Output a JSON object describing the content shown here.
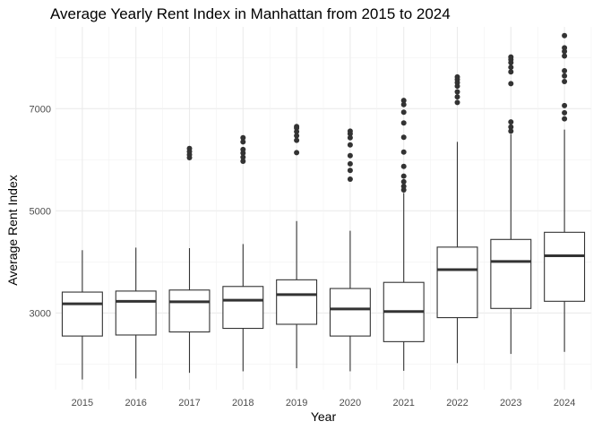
{
  "chart_data": {
    "type": "box",
    "title": "Average Yearly Rent Index in Manhattan from 2015 to 2024",
    "xlabel": "Year",
    "ylabel": "Average Rent Index",
    "ylim": [
      1500,
      8600
    ],
    "yticks": [
      3000,
      5000,
      7000
    ],
    "grid": true,
    "categories": [
      "2015",
      "2016",
      "2017",
      "2018",
      "2019",
      "2020",
      "2021",
      "2022",
      "2023",
      "2024"
    ],
    "boxes": [
      {
        "category": "2015",
        "min": 1700,
        "q1": 2550,
        "median": 3180,
        "q3": 3410,
        "max": 4230,
        "outliers": []
      },
      {
        "category": "2016",
        "min": 1720,
        "q1": 2570,
        "median": 3230,
        "q3": 3430,
        "max": 4280,
        "outliers": []
      },
      {
        "category": "2017",
        "min": 1830,
        "q1": 2630,
        "median": 3220,
        "q3": 3450,
        "max": 4270,
        "outliers": [
          6040,
          6100,
          6160,
          6220
        ]
      },
      {
        "category": "2018",
        "min": 1860,
        "q1": 2700,
        "median": 3250,
        "q3": 3520,
        "max": 4350,
        "outliers": [
          5970,
          6050,
          6130,
          6200,
          6350,
          6430
        ]
      },
      {
        "category": "2019",
        "min": 1920,
        "q1": 2780,
        "median": 3360,
        "q3": 3650,
        "max": 4800,
        "outliers": [
          6140,
          6380,
          6470,
          6550,
          6620,
          6650
        ]
      },
      {
        "category": "2020",
        "min": 1860,
        "q1": 2550,
        "median": 3080,
        "q3": 3480,
        "max": 4610,
        "outliers": [
          5620,
          5790,
          5920,
          6080,
          6290,
          6430,
          6510,
          6560
        ]
      },
      {
        "category": "2021",
        "min": 1870,
        "q1": 2440,
        "median": 3030,
        "q3": 3600,
        "max": 5350,
        "outliers": [
          5410,
          5480,
          5570,
          5680,
          5870,
          6150,
          6440,
          6720,
          6930,
          7080,
          7160
        ]
      },
      {
        "category": "2022",
        "min": 2020,
        "q1": 2910,
        "median": 3850,
        "q3": 4290,
        "max": 6350,
        "outliers": [
          7120,
          7230,
          7330,
          7440,
          7510,
          7570,
          7620
        ]
      },
      {
        "category": "2023",
        "min": 2200,
        "q1": 3090,
        "median": 4010,
        "q3": 4440,
        "max": 6500,
        "outliers": [
          6560,
          6640,
          6740,
          7490,
          7720,
          7810,
          7900,
          7960,
          8010
        ]
      },
      {
        "category": "2024",
        "min": 2240,
        "q1": 3230,
        "median": 4120,
        "q3": 4580,
        "max": 6590,
        "outliers": [
          6800,
          6920,
          7060,
          7530,
          7640,
          7740,
          8030,
          8120,
          8190,
          8430
        ]
      }
    ]
  }
}
